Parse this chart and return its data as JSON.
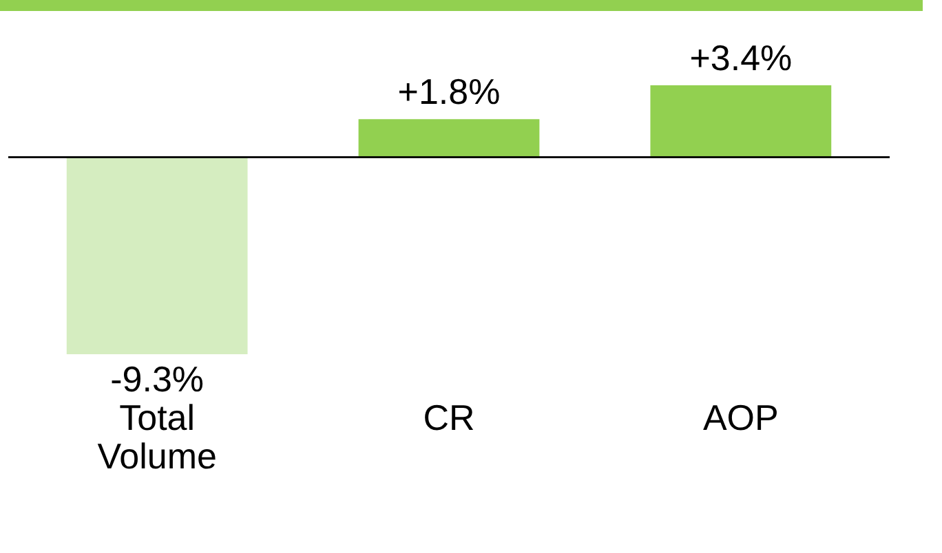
{
  "chart_data": {
    "type": "bar",
    "categories": [
      "Total Volume",
      "CR",
      "AOP"
    ],
    "values": [
      -9.3,
      1.8,
      3.4
    ],
    "colors": [
      "#d5edc0",
      "#92d050",
      "#92d050"
    ],
    "value_labels": [
      "-9.3%",
      "+1.8%",
      "+3.4%"
    ]
  }
}
